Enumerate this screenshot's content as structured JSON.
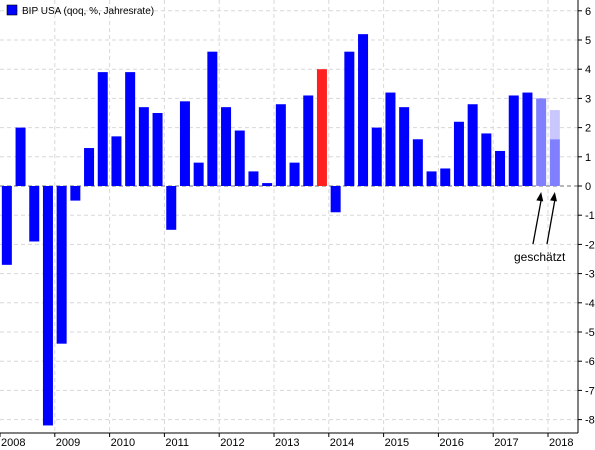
{
  "chart_data": {
    "type": "bar",
    "title": "",
    "xlabel": "",
    "ylabel": "",
    "legend": {
      "label": "BIP USA (qoq, %, Jahresrate)",
      "position": "top-left",
      "color": "#0000ff"
    },
    "ylim": [
      -8.2,
      6.4
    ],
    "yticks": [
      6,
      5,
      4,
      3,
      2,
      1,
      0,
      -1,
      -2,
      -3,
      -4,
      -5,
      -6,
      -7,
      -8
    ],
    "grid": true,
    "x_axis_labels": [
      "2008",
      "2009",
      "2010",
      "2011",
      "2012",
      "2013",
      "2014",
      "2015",
      "2016",
      "2017",
      "2018"
    ],
    "categories": [
      "2008 Q1",
      "2008 Q2",
      "2008 Q3",
      "2008 Q4",
      "2009 Q1",
      "2009 Q2",
      "2009 Q3",
      "2009 Q4",
      "2010 Q1",
      "2010 Q2",
      "2010 Q3",
      "2010 Q4",
      "2011 Q1",
      "2011 Q2",
      "2011 Q3",
      "2011 Q4",
      "2012 Q1",
      "2012 Q2",
      "2012 Q3",
      "2012 Q4",
      "2013 Q1",
      "2013 Q2",
      "2013 Q3",
      "2013 Q4",
      "2014 Q1",
      "2014 Q2",
      "2014 Q3",
      "2014 Q4",
      "2015 Q1",
      "2015 Q2",
      "2015 Q3",
      "2015 Q4",
      "2016 Q1",
      "2016 Q2",
      "2016 Q3",
      "2016 Q4",
      "2017 Q1",
      "2017 Q2",
      "2017 Q3",
      "2017 Q4",
      "2018 Q1"
    ],
    "values": [
      -2.7,
      2.0,
      -1.9,
      -8.2,
      -5.4,
      -0.5,
      1.3,
      3.9,
      1.7,
      3.9,
      2.7,
      2.5,
      -1.5,
      2.9,
      0.8,
      4.6,
      2.7,
      1.9,
      0.5,
      0.1,
      2.8,
      0.8,
      3.1,
      4.0,
      -0.9,
      4.6,
      5.2,
      2.0,
      3.2,
      2.7,
      1.6,
      0.5,
      0.6,
      2.2,
      2.8,
      1.8,
      1.2,
      3.1,
      3.2,
      3.0,
      1.6
    ],
    "colors": {
      "normal": "#0000ff",
      "highlight": "#ff2020",
      "estimate": "#8080ff",
      "estimate_range": "#c8c8ff"
    },
    "highlight_index": 23,
    "estimate_indices": [
      39,
      40
    ],
    "estimate_upper": [
      null,
      2.6
    ],
    "annotation": {
      "text": "geschätzt",
      "targets": [
        39,
        40
      ]
    }
  }
}
